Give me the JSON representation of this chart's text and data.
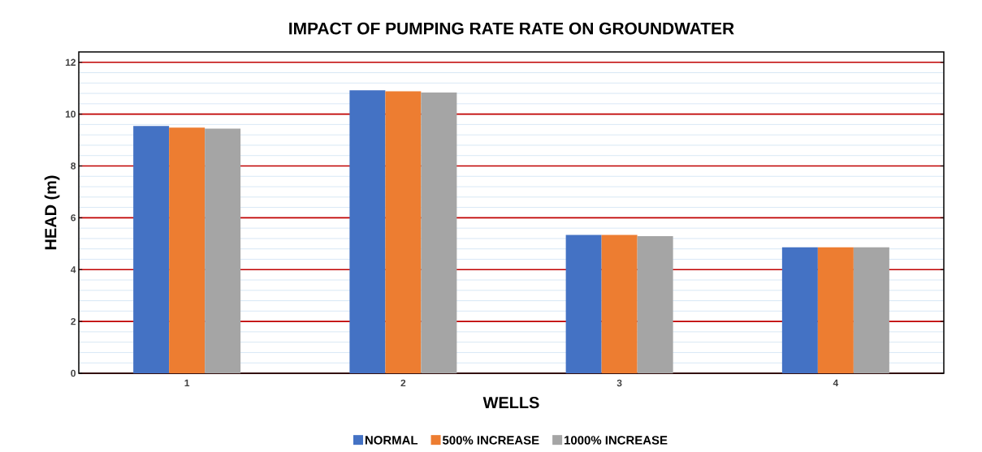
{
  "chart_data": {
    "type": "bar",
    "title": "IMPACT OF PUMPING RATE RATE ON GROUNDWATER",
    "xlabel": "WELLS",
    "ylabel": "HEAD (m)",
    "categories": [
      "1",
      "2",
      "3",
      "4"
    ],
    "series": [
      {
        "name": "NORMAL",
        "color": "#4472c4",
        "values": [
          9.54,
          10.92,
          5.34,
          4.86
        ]
      },
      {
        "name": "500% INCREASE",
        "color": "#ed7d31",
        "values": [
          9.48,
          10.88,
          5.34,
          4.86
        ]
      },
      {
        "name": "1000% INCREASE",
        "color": "#a5a5a5",
        "values": [
          9.44,
          10.83,
          5.29,
          4.86
        ]
      }
    ],
    "ylim": [
      0,
      12.4
    ],
    "yticks": [
      0,
      {
        "value": 0.4,
        "label": null
      },
      {
        "value": 0.8,
        "label": null
      },
      {
        "value": 1.2,
        "label": null
      },
      {
        "value": 1.6,
        "label": null
      },
      2,
      {
        "value": 2.4,
        "label": null
      },
      {
        "value": 2.8,
        "label": null
      },
      {
        "value": 3.2,
        "label": null
      },
      {
        "value": 3.6,
        "label": null
      },
      4,
      {
        "value": 4.4,
        "label": null
      },
      {
        "value": 4.8,
        "label": null
      },
      {
        "value": 5.2,
        "label": null
      },
      {
        "value": 5.6,
        "label": null
      },
      6,
      {
        "value": 6.4,
        "label": null
      },
      {
        "value": 6.8,
        "label": null
      },
      {
        "value": 7.2,
        "label": null
      },
      {
        "value": 7.6,
        "label": null
      },
      8,
      {
        "value": 8.4,
        "label": null
      },
      {
        "value": 8.8,
        "label": null
      },
      {
        "value": 9.2,
        "label": null
      },
      {
        "value": 9.6,
        "label": null
      },
      10,
      {
        "value": 10.4,
        "label": null
      },
      {
        "value": 10.8,
        "label": null
      },
      {
        "value": 11.2,
        "label": null
      },
      {
        "value": 11.6,
        "label": null
      },
      12
    ],
    "grid": "y",
    "legend": "bottom"
  }
}
